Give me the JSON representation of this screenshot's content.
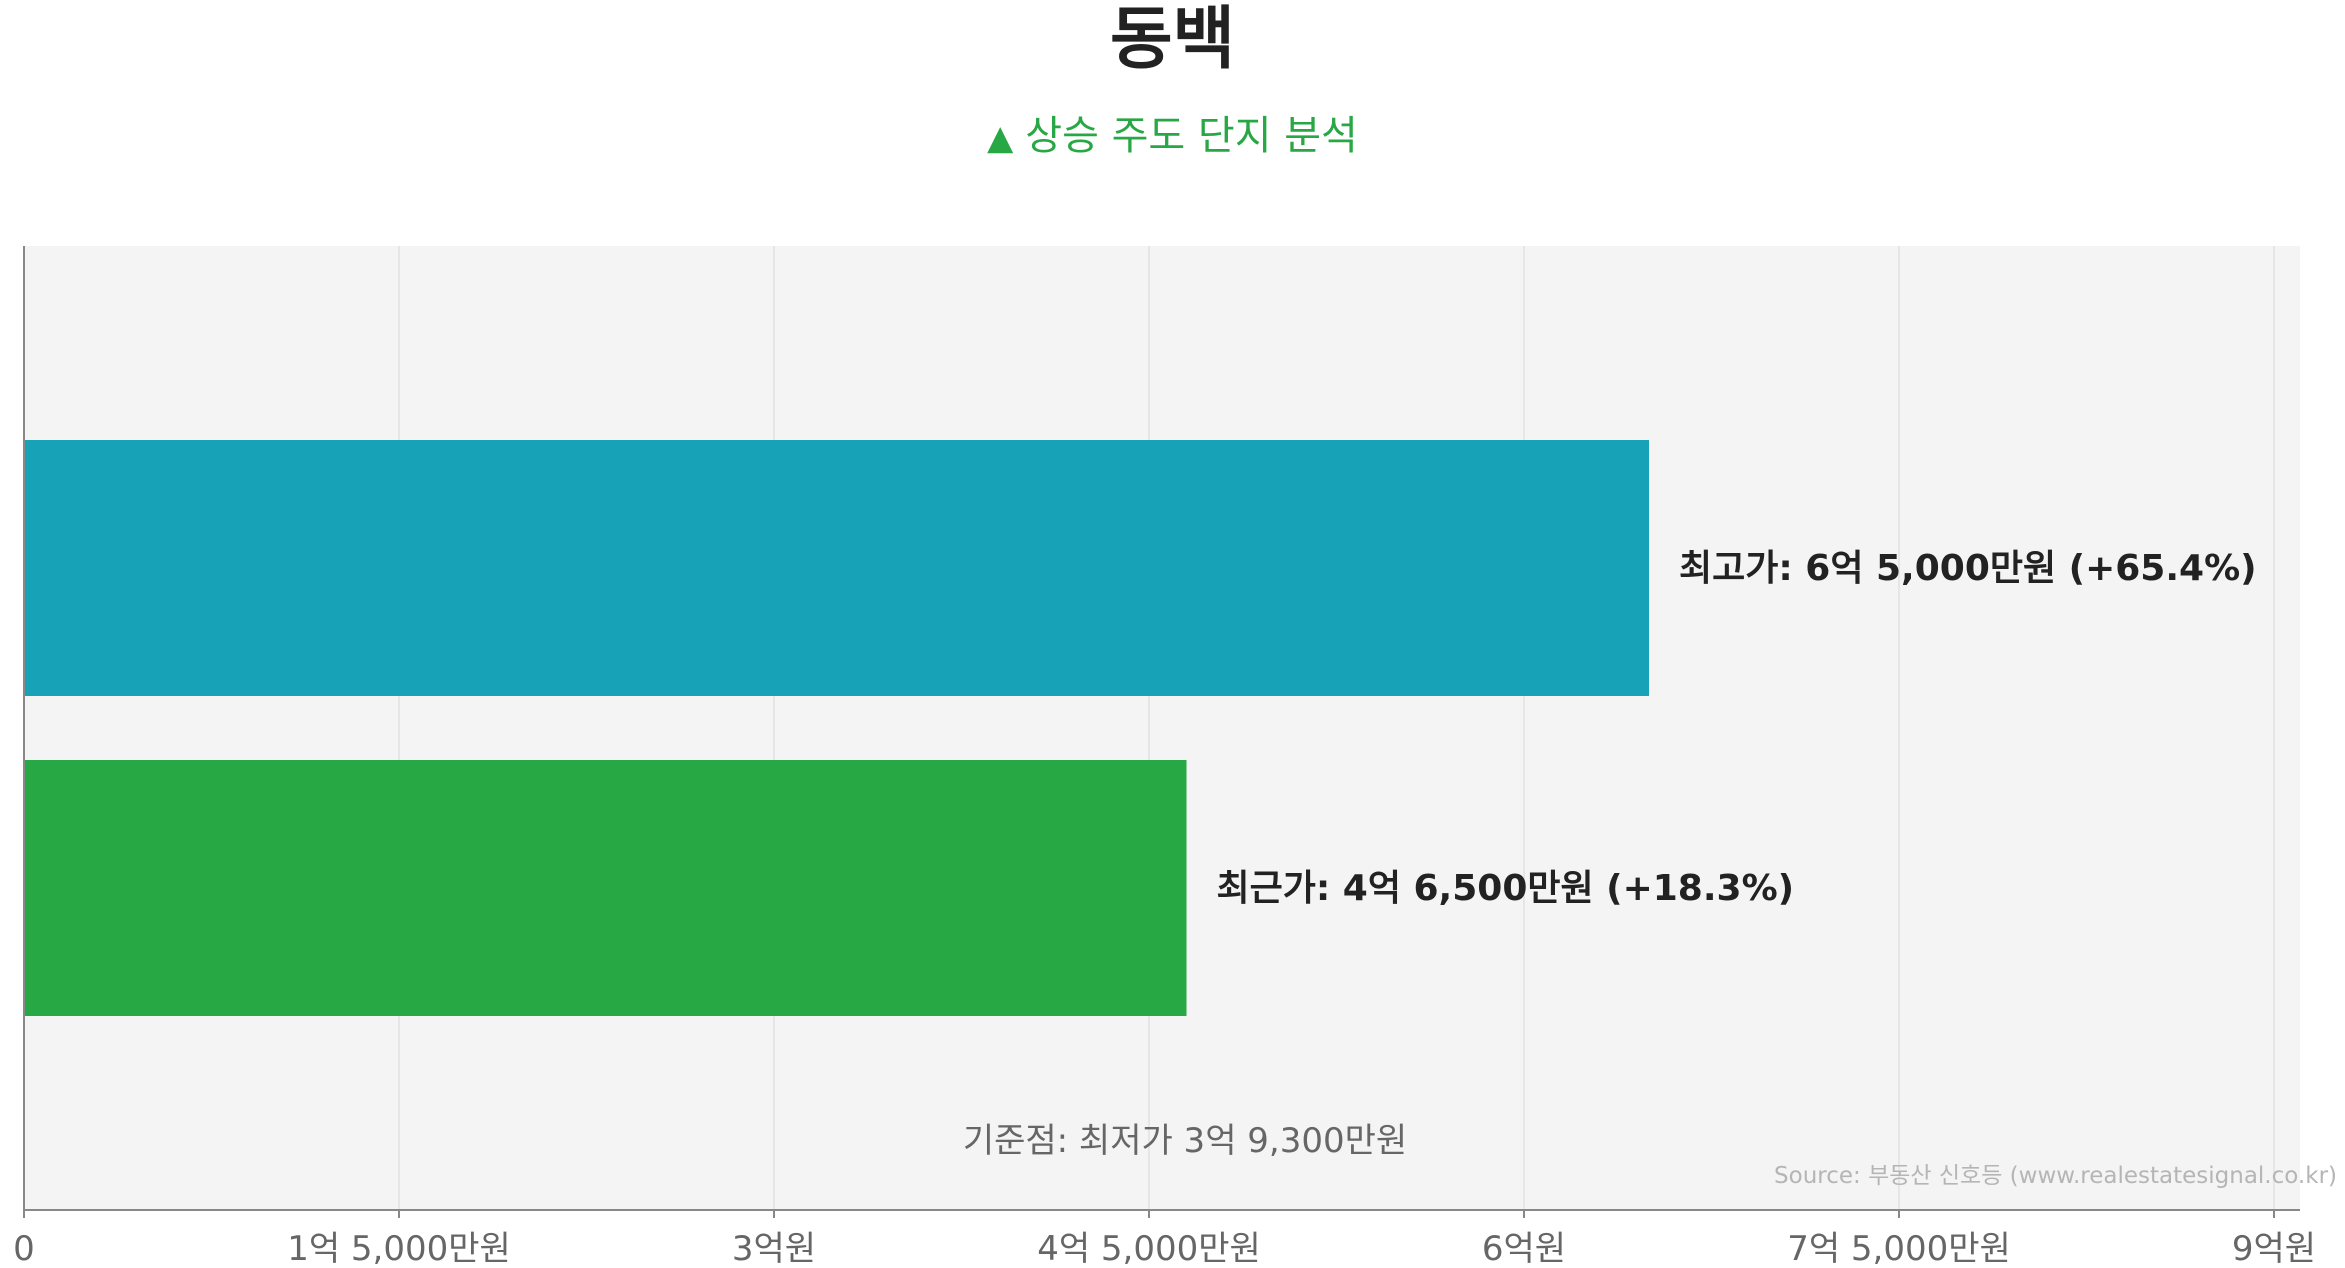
{
  "chart": {
    "title": "동백",
    "subtitle_marker": "▲",
    "subtitle": "상승 주도 단지 분석",
    "baseline_label": "기준점: 최저가 3억 9,300만원",
    "source": "Source: 부동산 신호등 (www.realestatesignal.co.kr)"
  },
  "colors": {
    "rising": "#28a745",
    "peak": "#17a2b8",
    "plot_bg": "#f4f4f4",
    "grid": "#e2e2e2",
    "text": "#222222",
    "axis_text": "#666666"
  },
  "chart_data": {
    "type": "bar",
    "orientation": "horizontal",
    "unit": "만원",
    "xlim": [
      0,
      91000
    ],
    "xticks": [
      {
        "value": 0,
        "label": "0"
      },
      {
        "value": 15000,
        "label": "1억 5,000만원"
      },
      {
        "value": 30000,
        "label": "3억원"
      },
      {
        "value": 45000,
        "label": "4억 5,000만원"
      },
      {
        "value": 60000,
        "label": "6억원"
      },
      {
        "value": 75000,
        "label": "7억 5,000만원"
      },
      {
        "value": 90000,
        "label": "9억원"
      }
    ],
    "grid": true,
    "bars": [
      {
        "category": "최고가",
        "value": 65000,
        "label": "최고가: 6억 5,000만원 (+65.4%)",
        "color": "#17a2b8"
      },
      {
        "category": "최근가",
        "value": 46500,
        "label": "최근가: 4억 6,500만원 (+18.3%)",
        "color": "#28a745"
      }
    ],
    "baseline": {
      "category": "최저가",
      "value": 39300
    }
  }
}
